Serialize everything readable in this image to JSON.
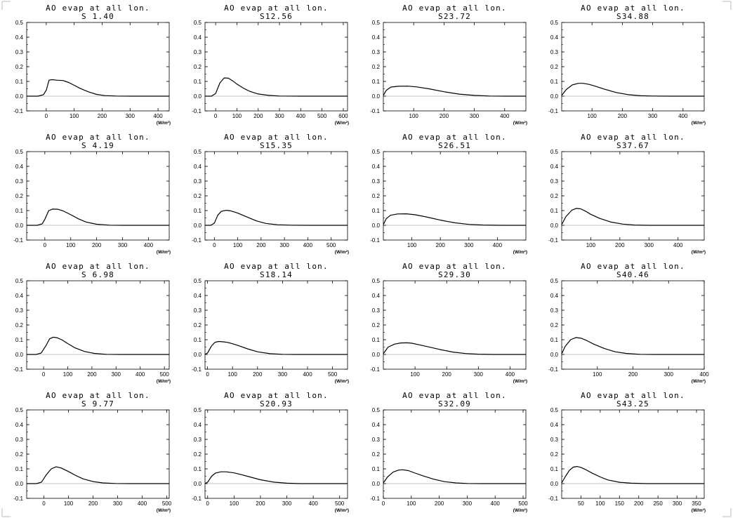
{
  "chart_data": [
    {
      "type": "line",
      "title": "AO evap at all lon.",
      "subtitle": "S 1.40",
      "xlim": [
        -70,
        440
      ],
      "xticks": [
        0,
        100,
        200,
        300,
        400
      ],
      "ylim": [
        -0.1,
        0.5
      ],
      "yticks": [
        -0.1,
        0.0,
        0.1,
        0.2,
        0.3,
        0.4,
        0.5
      ],
      "xunit": "(W/m²)",
      "series": [
        {
          "x": [
            -70,
            -30,
            -10,
            0,
            10,
            20,
            40,
            60,
            80,
            100,
            120,
            150,
            180,
            210,
            250,
            300,
            350,
            440
          ],
          "values": [
            0,
            0,
            0.01,
            0.04,
            0.108,
            0.112,
            0.108,
            0.106,
            0.093,
            0.074,
            0.054,
            0.03,
            0.012,
            0.004,
            0.001,
            0,
            0,
            0
          ]
        }
      ]
    },
    {
      "type": "line",
      "title": "AO evap at all lon.",
      "subtitle": "S12.56",
      "xlim": [
        -50,
        620
      ],
      "xticks": [
        0,
        100,
        200,
        300,
        400,
        500,
        600
      ],
      "ylim": [
        -0.1,
        0.5
      ],
      "yticks": [
        -0.1,
        0.0,
        0.1,
        0.2,
        0.3,
        0.4,
        0.5
      ],
      "xunit": "(W/m²)",
      "series": [
        {
          "x": [
            -50,
            -20,
            0,
            20,
            40,
            60,
            80,
            100,
            130,
            160,
            200,
            250,
            300,
            400,
            620
          ],
          "values": [
            0,
            0,
            0.018,
            0.09,
            0.124,
            0.122,
            0.104,
            0.082,
            0.055,
            0.033,
            0.015,
            0.005,
            0.001,
            0,
            0
          ]
        }
      ]
    },
    {
      "type": "line",
      "title": "AO evap at all lon.",
      "subtitle": "S23.72",
      "xlim": [
        0,
        470
      ],
      "xticks": [
        100,
        200,
        300,
        400
      ],
      "ylim": [
        -0.1,
        0.5
      ],
      "yticks": [
        -0.1,
        0.0,
        0.1,
        0.2,
        0.3,
        0.4,
        0.5
      ],
      "xunit": "(W/m²)",
      "series": [
        {
          "x": [
            0,
            10,
            25,
            50,
            80,
            110,
            150,
            200,
            250,
            300,
            350,
            400,
            470
          ],
          "values": [
            0.005,
            0.04,
            0.062,
            0.067,
            0.068,
            0.063,
            0.05,
            0.03,
            0.014,
            0.005,
            0.001,
            0,
            0
          ]
        }
      ]
    },
    {
      "type": "line",
      "title": "AO evap at all lon.",
      "subtitle": "S34.88",
      "xlim": [
        0,
        470
      ],
      "xticks": [
        100,
        200,
        300,
        400
      ],
      "ylim": [
        -0.1,
        0.5
      ],
      "yticks": [
        -0.1,
        0.0,
        0.1,
        0.2,
        0.3,
        0.4,
        0.5
      ],
      "xunit": "(W/m²)",
      "series": [
        {
          "x": [
            0,
            15,
            35,
            55,
            70,
            90,
            110,
            140,
            180,
            220,
            260,
            300,
            350,
            470
          ],
          "values": [
            0.005,
            0.045,
            0.076,
            0.087,
            0.087,
            0.08,
            0.068,
            0.048,
            0.025,
            0.01,
            0.003,
            0.001,
            0,
            0
          ]
        }
      ]
    },
    {
      "type": "line",
      "title": "AO evap at all lon.",
      "subtitle": "S 4.19",
      "xlim": [
        -70,
        480
      ],
      "xticks": [
        0,
        100,
        200,
        300,
        400
      ],
      "ylim": [
        -0.1,
        0.5
      ],
      "yticks": [
        -0.1,
        0.0,
        0.1,
        0.2,
        0.3,
        0.4,
        0.5
      ],
      "xunit": "(W/m²)",
      "series": [
        {
          "x": [
            -70,
            -30,
            -10,
            0,
            15,
            30,
            50,
            70,
            100,
            130,
            160,
            200,
            250,
            300,
            480
          ],
          "values": [
            0,
            0,
            0.01,
            0.04,
            0.1,
            0.11,
            0.109,
            0.098,
            0.072,
            0.044,
            0.022,
            0.007,
            0.001,
            0,
            0
          ]
        }
      ]
    },
    {
      "type": "line",
      "title": "AO evap at all lon.",
      "subtitle": "S15.35",
      "xlim": [
        -40,
        570
      ],
      "xticks": [
        0,
        100,
        200,
        300,
        400,
        500
      ],
      "ylim": [
        -0.1,
        0.5
      ],
      "yticks": [
        -0.1,
        0.0,
        0.1,
        0.2,
        0.3,
        0.4,
        0.5
      ],
      "xunit": "(W/m²)",
      "series": [
        {
          "x": [
            -40,
            -15,
            0,
            15,
            30,
            50,
            70,
            100,
            140,
            180,
            220,
            270,
            330,
            400,
            570
          ],
          "values": [
            0,
            0,
            0.015,
            0.07,
            0.095,
            0.102,
            0.098,
            0.083,
            0.056,
            0.03,
            0.013,
            0.004,
            0.001,
            0,
            0
          ]
        }
      ]
    },
    {
      "type": "line",
      "title": "AO evap at all lon.",
      "subtitle": "S26.51",
      "xlim": [
        0,
        500
      ],
      "xticks": [
        100,
        200,
        300,
        400
      ],
      "ylim": [
        -0.1,
        0.5
      ],
      "yticks": [
        -0.1,
        0.0,
        0.1,
        0.2,
        0.3,
        0.4,
        0.5
      ],
      "xunit": "(W/m²)",
      "series": [
        {
          "x": [
            0,
            10,
            25,
            50,
            80,
            110,
            150,
            200,
            250,
            300,
            350,
            420,
            500
          ],
          "values": [
            0.005,
            0.045,
            0.068,
            0.077,
            0.078,
            0.072,
            0.057,
            0.035,
            0.017,
            0.006,
            0.002,
            0,
            0
          ]
        }
      ]
    },
    {
      "type": "line",
      "title": "AO evap at all lon.",
      "subtitle": "S37.67",
      "xlim": [
        0,
        490
      ],
      "xticks": [
        100,
        200,
        300,
        400
      ],
      "ylim": [
        -0.1,
        0.5
      ],
      "yticks": [
        -0.1,
        0.0,
        0.1,
        0.2,
        0.3,
        0.4,
        0.5
      ],
      "xunit": "(W/m²)",
      "series": [
        {
          "x": [
            0,
            15,
            35,
            50,
            65,
            80,
            100,
            130,
            170,
            210,
            250,
            300,
            350,
            490
          ],
          "values": [
            0.005,
            0.06,
            0.103,
            0.115,
            0.112,
            0.098,
            0.075,
            0.047,
            0.022,
            0.008,
            0.002,
            0,
            0,
            0
          ]
        }
      ]
    },
    {
      "type": "line",
      "title": "AO evap at all lon.",
      "subtitle": "S 6.98",
      "xlim": [
        -70,
        520
      ],
      "xticks": [
        0,
        100,
        200,
        300,
        400,
        500
      ],
      "ylim": [
        -0.1,
        0.5
      ],
      "yticks": [
        -0.1,
        0.0,
        0.1,
        0.2,
        0.3,
        0.4,
        0.5
      ],
      "xunit": "(W/m²)",
      "series": [
        {
          "x": [
            -70,
            -30,
            -10,
            10,
            25,
            40,
            55,
            75,
            100,
            130,
            170,
            210,
            260,
            320,
            520
          ],
          "values": [
            0,
            0,
            0.01,
            0.06,
            0.106,
            0.117,
            0.114,
            0.1,
            0.074,
            0.045,
            0.02,
            0.007,
            0.001,
            0,
            0
          ]
        }
      ]
    },
    {
      "type": "line",
      "title": "AO evap at all lon.",
      "subtitle": "S18.14",
      "xlim": [
        -10,
        560
      ],
      "xticks": [
        0,
        100,
        200,
        300,
        400,
        500
      ],
      "ylim": [
        -0.1,
        0.5
      ],
      "yticks": [
        -0.1,
        0.0,
        0.1,
        0.2,
        0.3,
        0.4,
        0.5
      ],
      "xunit": "(W/m²)",
      "series": [
        {
          "x": [
            -10,
            0,
            15,
            30,
            45,
            60,
            80,
            100,
            130,
            160,
            200,
            250,
            300,
            350,
            560
          ],
          "values": [
            0,
            0.01,
            0.055,
            0.083,
            0.088,
            0.086,
            0.082,
            0.073,
            0.056,
            0.038,
            0.018,
            0.005,
            0.001,
            0,
            0
          ]
        }
      ]
    },
    {
      "type": "line",
      "title": "AO evap at all lon.",
      "subtitle": "S29.30",
      "xlim": [
        0,
        450
      ],
      "xticks": [
        100,
        200,
        300,
        400
      ],
      "ylim": [
        -0.1,
        0.5
      ],
      "yticks": [
        -0.1,
        0.0,
        0.1,
        0.2,
        0.3,
        0.4,
        0.5
      ],
      "xunit": "(W/m²)",
      "series": [
        {
          "x": [
            0,
            15,
            35,
            55,
            75,
            90,
            110,
            140,
            180,
            220,
            260,
            300,
            350,
            450
          ],
          "values": [
            0.005,
            0.05,
            0.07,
            0.078,
            0.079,
            0.076,
            0.067,
            0.053,
            0.033,
            0.016,
            0.006,
            0.002,
            0,
            0
          ]
        }
      ]
    },
    {
      "type": "line",
      "title": "AO evap at all lon.",
      "subtitle": "S40.46",
      "xlim": [
        0,
        400
      ],
      "xticks": [
        100,
        200,
        300,
        400
      ],
      "ylim": [
        -0.1,
        0.5
      ],
      "yticks": [
        -0.1,
        0.0,
        0.1,
        0.2,
        0.3,
        0.4,
        0.5
      ],
      "xunit": "(W/m²)",
      "series": [
        {
          "x": [
            0,
            10,
            25,
            40,
            55,
            70,
            90,
            120,
            150,
            180,
            220,
            260,
            300,
            400
          ],
          "values": [
            0.005,
            0.055,
            0.1,
            0.115,
            0.11,
            0.095,
            0.07,
            0.04,
            0.018,
            0.007,
            0.001,
            0,
            0,
            0
          ]
        }
      ]
    },
    {
      "type": "line",
      "title": "AO evap at all lon.",
      "subtitle": "S 9.77",
      "xlim": [
        -70,
        510
      ],
      "xticks": [
        0,
        100,
        200,
        300,
        400,
        500
      ],
      "ylim": [
        -0.1,
        0.5
      ],
      "yticks": [
        -0.1,
        0.0,
        0.1,
        0.2,
        0.3,
        0.4,
        0.5
      ],
      "xunit": "(W/m²)",
      "series": [
        {
          "x": [
            -70,
            -30,
            -10,
            10,
            30,
            50,
            70,
            100,
            130,
            160,
            200,
            240,
            290,
            350,
            510
          ],
          "values": [
            0,
            0,
            0.01,
            0.06,
            0.1,
            0.114,
            0.106,
            0.082,
            0.055,
            0.032,
            0.014,
            0.005,
            0.001,
            0,
            0
          ]
        }
      ]
    },
    {
      "type": "line",
      "title": "AO evap at all lon.",
      "subtitle": "S20.93",
      "xlim": [
        -10,
        530
      ],
      "xticks": [
        0,
        100,
        200,
        300,
        400,
        500
      ],
      "ylim": [
        -0.1,
        0.5
      ],
      "yticks": [
        -0.1,
        0.0,
        0.1,
        0.2,
        0.3,
        0.4,
        0.5
      ],
      "xunit": "(W/m²)",
      "series": [
        {
          "x": [
            -10,
            0,
            15,
            30,
            50,
            70,
            100,
            130,
            160,
            200,
            250,
            300,
            350,
            530
          ],
          "values": [
            0,
            0.01,
            0.05,
            0.072,
            0.08,
            0.08,
            0.073,
            0.06,
            0.045,
            0.026,
            0.01,
            0.003,
            0,
            0
          ]
        }
      ]
    },
    {
      "type": "line",
      "title": "AO evap at all lon.",
      "subtitle": "S32.09",
      "xlim": [
        0,
        510
      ],
      "xticks": [
        0,
        100,
        200,
        300,
        400,
        500
      ],
      "ylim": [
        -0.1,
        0.5
      ],
      "yticks": [
        -0.1,
        0.0,
        0.1,
        0.2,
        0.3,
        0.4,
        0.5
      ],
      "xunit": "(W/m²)",
      "series": [
        {
          "x": [
            0,
            15,
            35,
            55,
            70,
            90,
            110,
            140,
            180,
            220,
            260,
            300,
            350,
            510
          ],
          "values": [
            0.005,
            0.045,
            0.078,
            0.092,
            0.094,
            0.088,
            0.074,
            0.054,
            0.03,
            0.013,
            0.005,
            0.001,
            0,
            0
          ]
        }
      ]
    },
    {
      "type": "line",
      "title": "AO evap at all lon.",
      "subtitle": "S43.25",
      "xlim": [
        0,
        370
      ],
      "xticks": [
        50,
        100,
        150,
        200,
        250,
        300,
        350
      ],
      "ylim": [
        -0.1,
        0.5
      ],
      "yticks": [
        -0.1,
        0.0,
        0.1,
        0.2,
        0.3,
        0.4,
        0.5
      ],
      "xunit": "(W/m²)",
      "series": [
        {
          "x": [
            0,
            10,
            20,
            30,
            40,
            50,
            60,
            80,
            100,
            120,
            150,
            180,
            220,
            370
          ],
          "values": [
            0.005,
            0.05,
            0.09,
            0.112,
            0.116,
            0.11,
            0.098,
            0.07,
            0.045,
            0.025,
            0.009,
            0.003,
            0,
            0
          ]
        }
      ]
    }
  ]
}
